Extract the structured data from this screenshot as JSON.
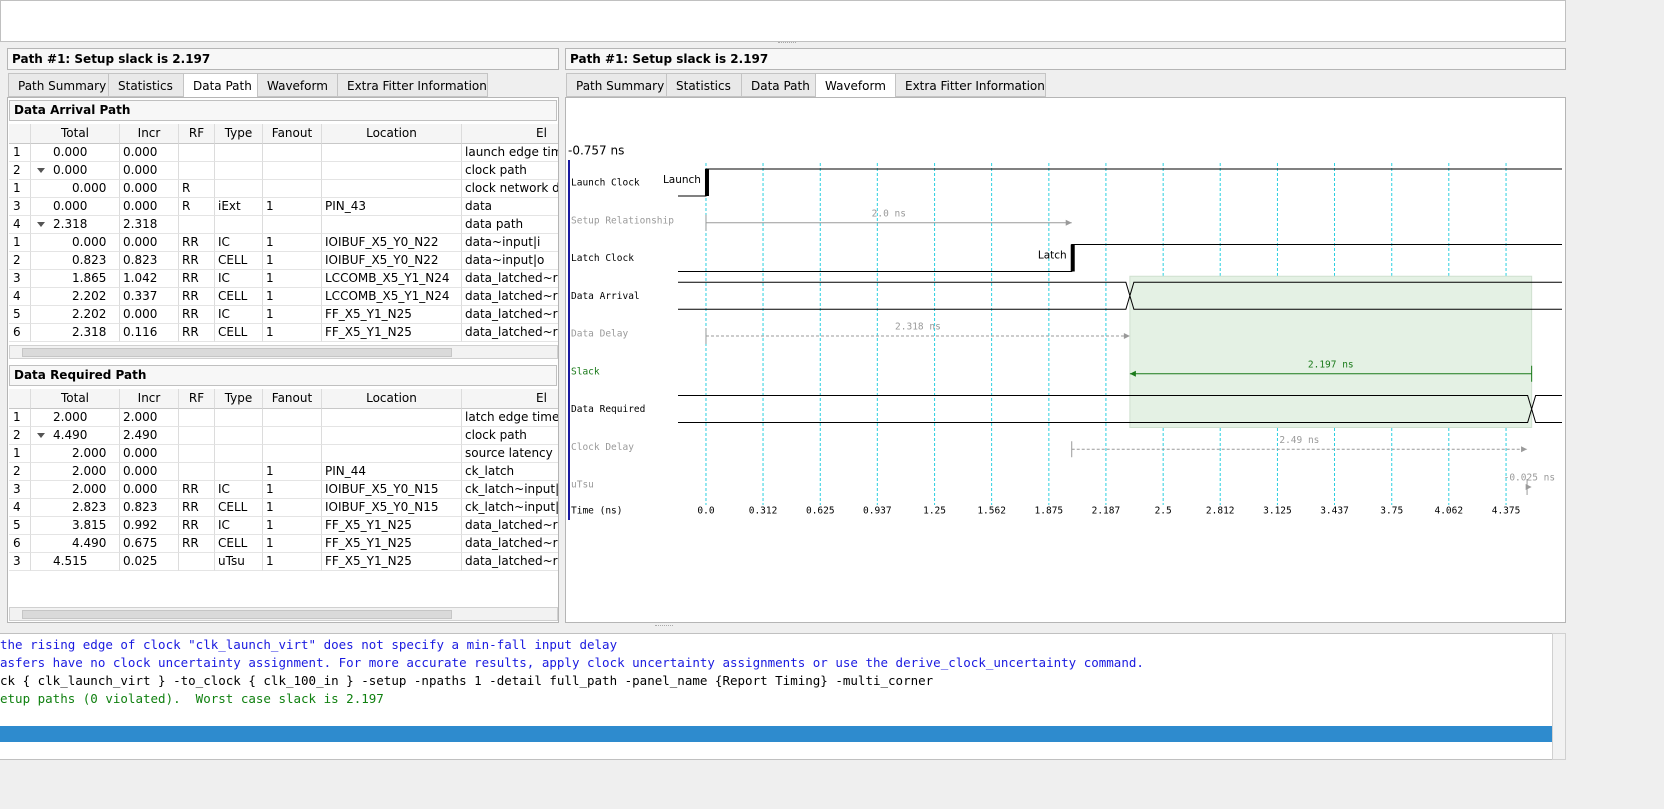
{
  "left": {
    "title": "Path #1: Setup slack is 2.197",
    "tabs": [
      "Path Summary",
      "Statistics",
      "Data Path",
      "Waveform",
      "Extra Fitter Information"
    ],
    "active_tab": 2
  },
  "right": {
    "title": "Path #1: Setup slack is 2.197",
    "tabs": [
      "Path Summary",
      "Statistics",
      "Data Path",
      "Waveform",
      "Extra Fitter Information"
    ],
    "active_tab": 3
  },
  "arrival": {
    "title": "Data Arrival Path",
    "columns": [
      "Total",
      "Incr",
      "RF",
      "Type",
      "Fanout",
      "Location",
      "El"
    ],
    "rows": [
      {
        "id": "1",
        "total": "0.000",
        "incr": "0.000",
        "element": "launch edge time"
      },
      {
        "id": "2",
        "total": "0.000",
        "incr": "0.000",
        "element": "clock path",
        "children": [
          {
            "id": "1",
            "total": "0.000",
            "incr": "0.000",
            "rf": "R",
            "element": "clock network de"
          }
        ]
      },
      {
        "id": "3",
        "total": "0.000",
        "incr": "0.000",
        "rf": "R",
        "type": "iExt",
        "fanout": "1",
        "location": "PIN_43",
        "element": "data"
      },
      {
        "id": "4",
        "total": "2.318",
        "incr": "2.318",
        "element": "data path",
        "children": [
          {
            "id": "1",
            "total": "0.000",
            "incr": "0.000",
            "rf": "RR",
            "type": "IC",
            "fanout": "1",
            "location": "IOIBUF_X5_Y0_N22",
            "element": "data~input|i"
          },
          {
            "id": "2",
            "total": "0.823",
            "incr": "0.823",
            "rf": "RR",
            "type": "CELL",
            "fanout": "1",
            "location": "IOIBUF_X5_Y0_N22",
            "element": "data~input|o"
          },
          {
            "id": "3",
            "total": "1.865",
            "incr": "1.042",
            "rf": "RR",
            "type": "IC",
            "fanout": "1",
            "location": "LCCOMB_X5_Y1_N24",
            "element": "data_latched~reg"
          },
          {
            "id": "4",
            "total": "2.202",
            "incr": "0.337",
            "rf": "RR",
            "type": "CELL",
            "fanout": "1",
            "location": "LCCOMB_X5_Y1_N24",
            "element": "data_latched~reg"
          },
          {
            "id": "5",
            "total": "2.202",
            "incr": "0.000",
            "rf": "RR",
            "type": "IC",
            "fanout": "1",
            "location": "FF_X5_Y1_N25",
            "element": "data_latched~reg"
          },
          {
            "id": "6",
            "total": "2.318",
            "incr": "0.116",
            "rf": "RR",
            "type": "CELL",
            "fanout": "1",
            "location": "FF_X5_Y1_N25",
            "element": "data_latched~reg"
          }
        ]
      }
    ]
  },
  "required": {
    "title": "Data Required Path",
    "columns": [
      "Total",
      "Incr",
      "RF",
      "Type",
      "Fanout",
      "Location",
      "El"
    ],
    "rows": [
      {
        "id": "1",
        "total": "2.000",
        "incr": "2.000",
        "element": "latch edge time"
      },
      {
        "id": "2",
        "total": "4.490",
        "incr": "2.490",
        "element": "clock path",
        "children": [
          {
            "id": "1",
            "total": "2.000",
            "incr": "0.000",
            "element": "source latency"
          },
          {
            "id": "2",
            "total": "2.000",
            "incr": "0.000",
            "fanout": "1",
            "location": "PIN_44",
            "element": "ck_latch"
          },
          {
            "id": "3",
            "total": "2.000",
            "incr": "0.000",
            "rf": "RR",
            "type": "IC",
            "fanout": "1",
            "location": "IOIBUF_X5_Y0_N15",
            "element": "ck_latch~input|i"
          },
          {
            "id": "4",
            "total": "2.823",
            "incr": "0.823",
            "rf": "RR",
            "type": "CELL",
            "fanout": "1",
            "location": "IOIBUF_X5_Y0_N15",
            "element": "ck_latch~input|o"
          },
          {
            "id": "5",
            "total": "3.815",
            "incr": "0.992",
            "rf": "RR",
            "type": "IC",
            "fanout": "1",
            "location": "FF_X5_Y1_N25",
            "element": "data_latched~reg"
          },
          {
            "id": "6",
            "total": "4.490",
            "incr": "0.675",
            "rf": "RR",
            "type": "CELL",
            "fanout": "1",
            "location": "FF_X5_Y1_N25",
            "element": "data_latched~reg"
          }
        ]
      },
      {
        "id": "3",
        "total": "4.515",
        "incr": "0.025",
        "type": "uTsu",
        "fanout": "1",
        "location": "FF_X5_Y1_N25",
        "element": "data_latched~reg"
      }
    ]
  },
  "waveform": {
    "start_label": "-0.757 ns",
    "axis_label": "Time (ns)",
    "xlim": [
      -0.153,
      4.681
    ],
    "xticks": [
      {
        "value": 0,
        "label": "0.0"
      },
      0.312,
      0.625,
      0.937,
      1.25,
      1.562,
      1.875,
      2.187,
      2.5,
      2.812,
      3.125,
      3.437,
      3.75,
      4.062,
      4.375
    ],
    "shade_color": "#e4f1e4",
    "rows": [
      {
        "label": "Launch Clock",
        "kind": "clock",
        "edge": 0,
        "text": "Launch",
        "color": "#000000"
      },
      {
        "label": "Setup Relationship",
        "kind": "span",
        "start": 0,
        "end": 2.0,
        "text": "2.0 ns",
        "color": "#9a9a9a",
        "dashed": false
      },
      {
        "label": "Latch Clock",
        "kind": "clock",
        "edge": 2.0,
        "text": "Latch",
        "color": "#000000"
      },
      {
        "label": "Data Arrival",
        "kind": "bus",
        "edge": 2.318,
        "color": "#000000"
      },
      {
        "label": "Data Delay",
        "kind": "span",
        "start": 0,
        "end": 2.318,
        "text": "2.318 ns",
        "color": "#9a9a9a",
        "dashed": true
      },
      {
        "label": "Slack",
        "kind": "span",
        "start": 4.515,
        "end": 2.318,
        "text": "2.197 ns",
        "color": "#1a7a1a",
        "dashed": false
      },
      {
        "label": "Data Required",
        "kind": "bus",
        "edge": 4.515,
        "color": "#000000"
      },
      {
        "label": "Clock Delay",
        "kind": "span",
        "start": 2.0,
        "end": 4.49,
        "text": "2.49 ns",
        "color": "#9a9a9a",
        "dashed": true
      },
      {
        "label": "uTsu",
        "kind": "span",
        "start": 4.49,
        "end": 4.515,
        "text": "-0.025 ns",
        "color": "#9a9a9a",
        "dashed": true
      }
    ]
  },
  "console": [
    {
      "text": "the rising edge of clock \"clk_launch_virt\" does not specify a min-fall input delay",
      "color": "#1a1ae0"
    },
    {
      "text": "asfers have no clock uncertainty assignment. For more accurate results, apply clock uncertainty assignments or use the derive_clock_uncertainty command.",
      "color": "#1a1ae0"
    },
    {
      "text": "ck { clk_launch_virt } -to_clock { clk_100_in } -setup -npaths 1 -detail full_path -panel_name {Report Timing} -multi_corner",
      "color": "#000000"
    },
    {
      "text": "etup paths (0 violated).  Worst case slack is 2.197",
      "color": "#108010"
    }
  ]
}
